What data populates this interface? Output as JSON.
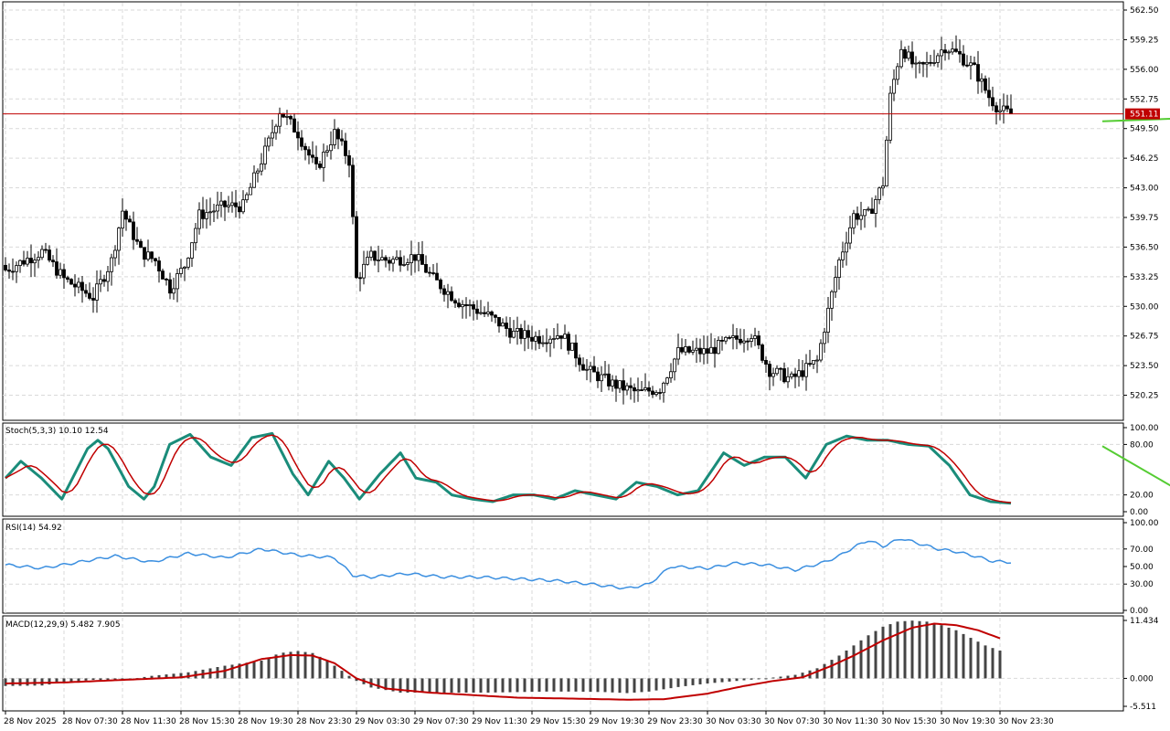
{
  "chart_data": {
    "type": "candlestick",
    "colors": {
      "up": "#ffffff",
      "down": "#000000",
      "line": "#c00000",
      "signal": "#c00000",
      "stoch_main": "#1a8c7a",
      "rsi": "#3b8fe0",
      "trend": "#55cc33",
      "arrow": "#66cc66",
      "price_tag": "#c00000"
    },
    "price_panel": {
      "current_price": 551.11,
      "current_price_label": "551.11",
      "ylim": [
        518.0,
        563.0
      ],
      "ticks": [
        "562.50",
        "559.25",
        "556.00",
        "552.75",
        "549.50",
        "546.25",
        "543.00",
        "539.75",
        "536.50",
        "533.25",
        "530.00",
        "526.75",
        "523.50",
        "520.25"
      ],
      "trend_line": [
        [
          300,
          550.3
        ],
        [
          327,
          550.7
        ]
      ],
      "arrow": {
        "index": 331,
        "price": 552.5,
        "direction": "up"
      }
    },
    "x_labels": [
      {
        "index": 0,
        "text": "28 Nov 2025"
      },
      {
        "index": 16,
        "text": "28 Nov 07:30"
      },
      {
        "index": 32,
        "text": "28 Nov 11:30"
      },
      {
        "index": 48,
        "text": "28 Nov 15:30"
      },
      {
        "index": 64,
        "text": "28 Nov 19:30"
      },
      {
        "index": 80,
        "text": "28 Nov 23:30"
      },
      {
        "index": 96,
        "text": "29 Nov 03:30"
      },
      {
        "index": 112,
        "text": "29 Nov 07:30"
      },
      {
        "index": 128,
        "text": "29 Nov 11:30"
      },
      {
        "index": 144,
        "text": "29 Nov 15:30"
      },
      {
        "index": 160,
        "text": "29 Nov 19:30"
      },
      {
        "index": 176,
        "text": "29 Nov 23:30"
      },
      {
        "index": 192,
        "text": "30 Nov 03:30"
      },
      {
        "index": 208,
        "text": "30 Nov 07:30"
      },
      {
        "index": 224,
        "text": "30 Nov 11:30"
      },
      {
        "index": 240,
        "text": "30 Nov 15:30"
      },
      {
        "index": 256,
        "text": "30 Nov 19:30"
      },
      {
        "index": 272,
        "text": "30 Nov 23:30"
      }
    ],
    "stoch": {
      "label": "Stoch(5,3,3) 10.10 12.54",
      "ylim": [
        0,
        100
      ],
      "ticks": [
        "100.00",
        "80.00",
        "20.00",
        "0.00"
      ],
      "levels": [
        80,
        20
      ],
      "trend_line": [
        [
          300,
          78
        ],
        [
          327,
          10
        ]
      ]
    },
    "rsi": {
      "label": "RSI(14) 54.92",
      "ylim": [
        0,
        100
      ],
      "ticks": [
        "100.00",
        "70.00",
        "50.00",
        "30.00",
        "0.00"
      ],
      "levels": [
        70,
        30
      ]
    },
    "macd": {
      "label": "MACD(12,29,9) 5.482 7.905",
      "ylim": [
        -5.511,
        11.434
      ],
      "ticks": [
        "11.434",
        "0.000",
        "-5.511"
      ]
    },
    "anchors": {
      "price": [
        [
          0,
          534
        ],
        [
          10,
          536
        ],
        [
          16,
          533
        ],
        [
          24,
          531
        ],
        [
          29,
          535
        ],
        [
          32,
          540.5
        ],
        [
          37,
          536
        ],
        [
          41,
          535
        ],
        [
          45,
          532
        ],
        [
          49,
          534.5
        ],
        [
          53,
          540
        ],
        [
          60,
          541
        ],
        [
          65,
          541
        ],
        [
          72,
          548
        ],
        [
          75,
          551.5
        ],
        [
          80,
          549
        ],
        [
          85,
          545
        ],
        [
          90,
          549
        ],
        [
          94,
          546
        ],
        [
          96,
          533
        ],
        [
          100,
          535.5
        ],
        [
          105,
          535
        ],
        [
          112,
          535.5
        ],
        [
          117,
          533
        ],
        [
          124,
          530.5
        ],
        [
          132,
          529
        ],
        [
          139,
          527
        ],
        [
          146,
          526.5
        ],
        [
          152,
          527
        ],
        [
          159,
          523
        ],
        [
          166,
          521.5
        ],
        [
          173,
          520.5
        ],
        [
          179,
          521
        ],
        [
          184,
          525
        ],
        [
          192,
          525
        ],
        [
          197,
          526
        ],
        [
          204,
          527
        ],
        [
          209,
          523
        ],
        [
          215,
          522
        ],
        [
          222,
          524
        ],
        [
          228,
          535
        ],
        [
          232,
          540
        ],
        [
          236,
          540
        ],
        [
          240,
          543.5
        ],
        [
          242,
          553
        ],
        [
          245,
          558.5
        ],
        [
          249,
          556
        ],
        [
          252,
          556.5
        ],
        [
          257,
          558.5
        ],
        [
          261,
          557.5
        ],
        [
          265,
          556
        ],
        [
          269,
          553
        ],
        [
          272,
          551.5
        ],
        [
          275,
          551.1
        ]
      ],
      "stoch_k": [
        [
          0,
          40
        ],
        [
          3,
          60
        ],
        [
          7,
          40
        ],
        [
          11,
          15
        ],
        [
          16,
          75
        ],
        [
          18,
          85
        ],
        [
          20,
          75
        ],
        [
          24,
          30
        ],
        [
          27,
          15
        ],
        [
          29,
          30
        ],
        [
          32,
          80
        ],
        [
          36,
          92
        ],
        [
          40,
          65
        ],
        [
          44,
          55
        ],
        [
          48,
          88
        ],
        [
          52,
          93
        ],
        [
          56,
          45
        ],
        [
          59,
          20
        ],
        [
          63,
          60
        ],
        [
          66,
          40
        ],
        [
          69,
          15
        ],
        [
          73,
          45
        ],
        [
          77,
          70
        ],
        [
          80,
          40
        ],
        [
          84,
          35
        ],
        [
          87,
          20
        ],
        [
          91,
          15
        ],
        [
          95,
          12
        ],
        [
          99,
          20
        ],
        [
          103,
          20
        ],
        [
          107,
          15
        ],
        [
          111,
          25
        ],
        [
          115,
          20
        ],
        [
          119,
          15
        ],
        [
          123,
          35
        ],
        [
          127,
          30
        ],
        [
          131,
          20
        ],
        [
          135,
          25
        ],
        [
          140,
          70
        ],
        [
          144,
          55
        ],
        [
          148,
          65
        ],
        [
          152,
          65
        ],
        [
          156,
          40
        ],
        [
          160,
          80
        ],
        [
          164,
          90
        ],
        [
          168,
          85
        ],
        [
          172,
          85
        ],
        [
          176,
          80
        ],
        [
          180,
          78
        ],
        [
          184,
          55
        ],
        [
          188,
          20
        ],
        [
          192,
          12
        ],
        [
          196,
          10
        ]
      ],
      "rsi": [
        [
          0,
          52
        ],
        [
          10,
          48
        ],
        [
          20,
          55
        ],
        [
          30,
          62
        ],
        [
          40,
          55
        ],
        [
          50,
          65
        ],
        [
          60,
          60
        ],
        [
          70,
          70
        ],
        [
          80,
          63
        ],
        [
          90,
          60
        ],
        [
          95,
          40
        ],
        [
          100,
          38
        ],
        [
          110,
          42
        ],
        [
          120,
          38
        ],
        [
          130,
          38
        ],
        [
          140,
          36
        ],
        [
          150,
          34
        ],
        [
          160,
          30
        ],
        [
          170,
          25
        ],
        [
          176,
          30
        ],
        [
          182,
          50
        ],
        [
          192,
          48
        ],
        [
          200,
          54
        ],
        [
          208,
          52
        ],
        [
          216,
          46
        ],
        [
          224,
          55
        ],
        [
          228,
          62
        ],
        [
          232,
          72
        ],
        [
          236,
          80
        ],
        [
          240,
          73
        ],
        [
          245,
          82
        ],
        [
          250,
          76
        ],
        [
          255,
          70
        ],
        [
          260,
          67
        ],
        [
          265,
          62
        ],
        [
          270,
          56
        ],
        [
          275,
          55
        ]
      ],
      "macd_hist": [
        [
          0,
          -1.5
        ],
        [
          10,
          -1.4
        ],
        [
          16,
          -0.8
        ],
        [
          24,
          -0.3
        ],
        [
          32,
          -0.4
        ],
        [
          40,
          0.5
        ],
        [
          50,
          1.2
        ],
        [
          60,
          2.5
        ],
        [
          70,
          3.5
        ],
        [
          75,
          5
        ],
        [
          80,
          5.4
        ],
        [
          84,
          5
        ],
        [
          88,
          3.5
        ],
        [
          92,
          1.5
        ],
        [
          96,
          -0.5
        ],
        [
          100,
          -1.8
        ],
        [
          108,
          -2.8
        ],
        [
          116,
          -2.8
        ],
        [
          124,
          -2.8
        ],
        [
          132,
          -2.8
        ],
        [
          140,
          -2.7
        ],
        [
          148,
          -2.6
        ],
        [
          156,
          -2.6
        ],
        [
          164,
          -2.7
        ],
        [
          170,
          -2.9
        ],
        [
          176,
          -2.6
        ],
        [
          184,
          -1.7
        ],
        [
          192,
          -1
        ],
        [
          200,
          -0.5
        ],
        [
          208,
          0
        ],
        [
          216,
          0.7
        ],
        [
          222,
          2
        ],
        [
          228,
          4.5
        ],
        [
          232,
          6.5
        ],
        [
          236,
          8.5
        ],
        [
          240,
          10.2
        ],
        [
          244,
          11.2
        ],
        [
          248,
          11.4
        ],
        [
          252,
          11.2
        ],
        [
          256,
          10.5
        ],
        [
          260,
          9.5
        ],
        [
          264,
          8
        ],
        [
          268,
          6.5
        ],
        [
          272,
          5.482
        ]
      ],
      "macd_signal": [
        [
          0,
          -1
        ],
        [
          16,
          -0.8
        ],
        [
          32,
          -0.3
        ],
        [
          48,
          0.2
        ],
        [
          60,
          1.5
        ],
        [
          70,
          3.8
        ],
        [
          78,
          4.6
        ],
        [
          84,
          4.5
        ],
        [
          90,
          3
        ],
        [
          96,
          0
        ],
        [
          104,
          -2
        ],
        [
          116,
          -2.8
        ],
        [
          128,
          -3.3
        ],
        [
          140,
          -3.8
        ],
        [
          156,
          -4
        ],
        [
          170,
          -4.2
        ],
        [
          180,
          -4.1
        ],
        [
          192,
          -3
        ],
        [
          202,
          -1.5
        ],
        [
          210,
          -0.5
        ],
        [
          218,
          0.2
        ],
        [
          226,
          2.5
        ],
        [
          232,
          4.5
        ],
        [
          240,
          7.5
        ],
        [
          248,
          10
        ],
        [
          254,
          10.8
        ],
        [
          260,
          10.5
        ],
        [
          266,
          9.5
        ],
        [
          272,
          7.905
        ]
      ]
    }
  }
}
